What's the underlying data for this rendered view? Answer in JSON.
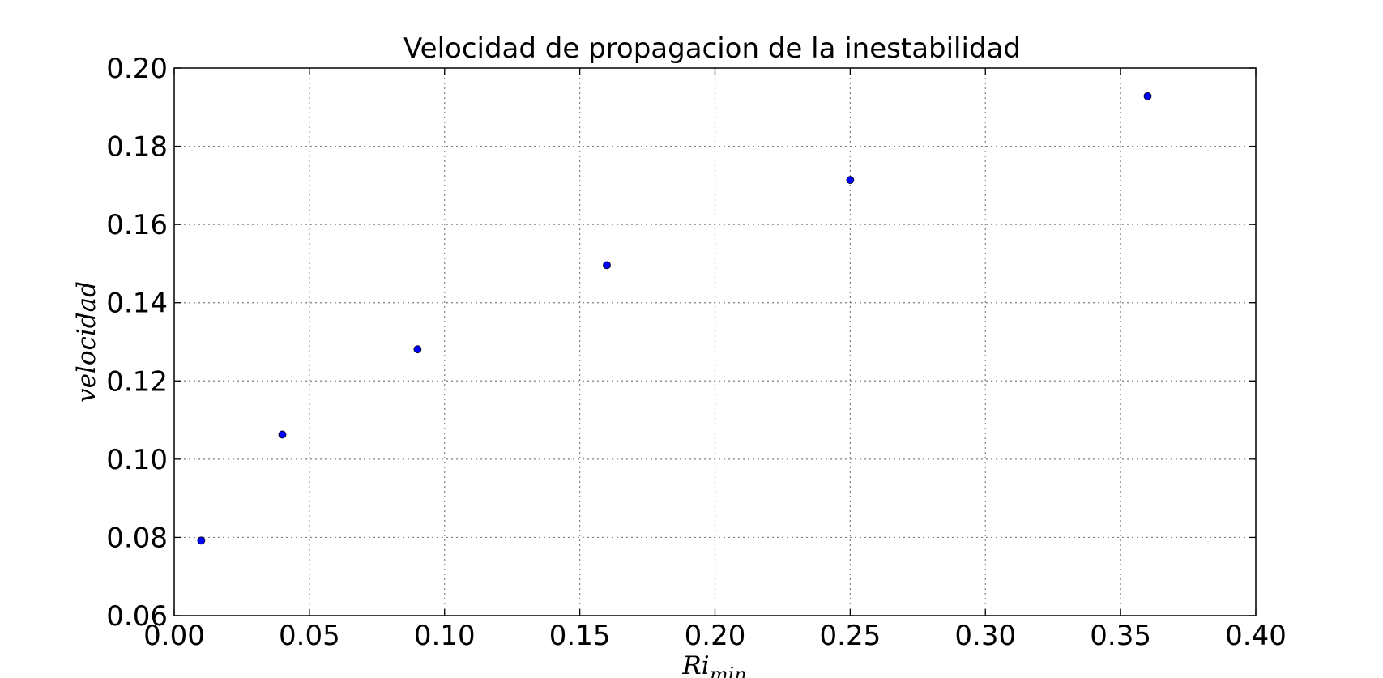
{
  "chart_data": {
    "type": "scatter",
    "title": "Velocidad de propagacion de la inestabilidad",
    "xlabel": "Ri",
    "xlabel_sub": "min",
    "ylabel": "velocidad",
    "xlim": [
      0.0,
      0.4
    ],
    "ylim": [
      0.06,
      0.2
    ],
    "xticks": [
      0.0,
      0.05,
      0.1,
      0.15,
      0.2,
      0.25,
      0.3,
      0.35,
      0.4
    ],
    "xtick_labels": [
      "0.00",
      "0.05",
      "0.10",
      "0.15",
      "0.20",
      "0.25",
      "0.30",
      "0.35",
      "0.40"
    ],
    "yticks": [
      0.06,
      0.08,
      0.1,
      0.12,
      0.14,
      0.16,
      0.18,
      0.2
    ],
    "ytick_labels": [
      "0.06",
      "0.08",
      "0.10",
      "0.12",
      "0.14",
      "0.16",
      "0.18",
      "0.20"
    ],
    "grid": true,
    "series": [
      {
        "color": "#0000ff",
        "x": [
          0.01,
          0.04,
          0.09,
          0.16,
          0.25,
          0.36
        ],
        "y": [
          0.0792,
          0.1063,
          0.1281,
          0.1496,
          0.1714,
          0.1928
        ]
      }
    ]
  }
}
